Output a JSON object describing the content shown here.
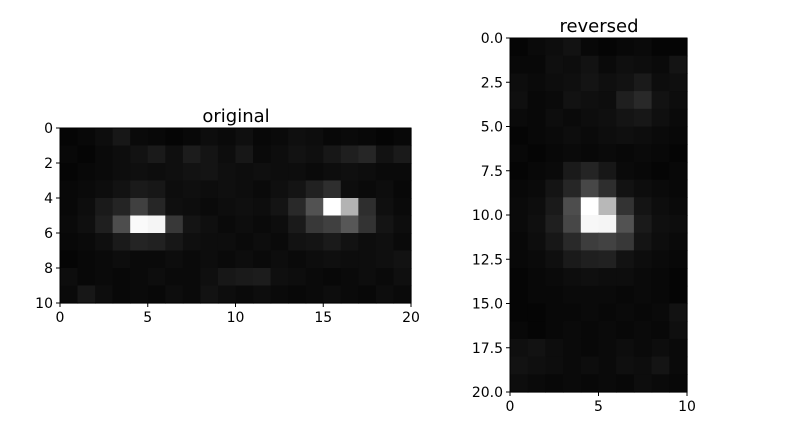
{
  "chart_data": [
    {
      "type": "heatmap",
      "title": "original",
      "colormap": "gray",
      "rows": 10,
      "cols": 20,
      "xlim": [
        0,
        20
      ],
      "ylim": [
        10,
        0
      ],
      "xticks": [
        "0",
        "5",
        "10",
        "15",
        "20"
      ],
      "yticks": [
        "0",
        "2",
        "4",
        "6",
        "8",
        "10"
      ],
      "grid": false,
      "values": [
        [
          0.02,
          0.03,
          0.05,
          0.09,
          0.04,
          0.03,
          0.02,
          0.03,
          0.05,
          0.04,
          0.06,
          0.03,
          0.04,
          0.06,
          0.05,
          0.03,
          0.04,
          0.03,
          0.02,
          0.03
        ],
        [
          0.03,
          0.02,
          0.04,
          0.05,
          0.07,
          0.1,
          0.06,
          0.11,
          0.08,
          0.05,
          0.09,
          0.04,
          0.05,
          0.07,
          0.06,
          0.09,
          0.12,
          0.15,
          0.07,
          0.1
        ],
        [
          0.02,
          0.03,
          0.04,
          0.05,
          0.06,
          0.05,
          0.06,
          0.07,
          0.08,
          0.06,
          0.05,
          0.06,
          0.05,
          0.05,
          0.04,
          0.05,
          0.06,
          0.05,
          0.04,
          0.04
        ],
        [
          0.03,
          0.04,
          0.05,
          0.07,
          0.1,
          0.09,
          0.05,
          0.06,
          0.05,
          0.06,
          0.05,
          0.04,
          0.06,
          0.08,
          0.13,
          0.18,
          0.05,
          0.04,
          0.05,
          0.03
        ],
        [
          0.03,
          0.05,
          0.1,
          0.14,
          0.25,
          0.15,
          0.06,
          0.05,
          0.04,
          0.05,
          0.06,
          0.05,
          0.08,
          0.16,
          0.32,
          1.0,
          0.7,
          0.18,
          0.06,
          0.04
        ],
        [
          0.04,
          0.06,
          0.12,
          0.3,
          0.98,
          0.96,
          0.22,
          0.08,
          0.06,
          0.04,
          0.05,
          0.04,
          0.05,
          0.1,
          0.22,
          0.25,
          0.34,
          0.2,
          0.08,
          0.05
        ],
        [
          0.03,
          0.04,
          0.06,
          0.1,
          0.14,
          0.13,
          0.09,
          0.06,
          0.05,
          0.05,
          0.04,
          0.05,
          0.04,
          0.07,
          0.08,
          0.1,
          0.07,
          0.05,
          0.06,
          0.04
        ],
        [
          0.02,
          0.03,
          0.04,
          0.05,
          0.04,
          0.04,
          0.05,
          0.04,
          0.05,
          0.04,
          0.05,
          0.04,
          0.05,
          0.04,
          0.05,
          0.06,
          0.05,
          0.05,
          0.06,
          0.07
        ],
        [
          0.05,
          0.03,
          0.04,
          0.03,
          0.04,
          0.05,
          0.04,
          0.04,
          0.06,
          0.09,
          0.1,
          0.11,
          0.06,
          0.05,
          0.04,
          0.03,
          0.04,
          0.05,
          0.04,
          0.06
        ],
        [
          0.04,
          0.09,
          0.05,
          0.03,
          0.04,
          0.03,
          0.05,
          0.04,
          0.07,
          0.05,
          0.04,
          0.05,
          0.04,
          0.03,
          0.04,
          0.05,
          0.04,
          0.03,
          0.05,
          0.04
        ]
      ]
    },
    {
      "type": "heatmap",
      "title": "reversed",
      "colormap": "gray",
      "rows": 20,
      "cols": 10,
      "xlim": [
        0,
        10
      ],
      "ylim": [
        20,
        0
      ],
      "xticks": [
        "0",
        "5",
        "10"
      ],
      "yticks": [
        "0.0",
        "2.5",
        "5.0",
        "7.5",
        "10.0",
        "12.5",
        "15.0",
        "17.5",
        "20.0"
      ],
      "grid": false,
      "values": [
        [
          0.02,
          0.04,
          0.05,
          0.07,
          0.03,
          0.02,
          0.03,
          0.04,
          0.02,
          0.02
        ],
        [
          0.03,
          0.03,
          0.06,
          0.05,
          0.07,
          0.04,
          0.06,
          0.05,
          0.04,
          0.08
        ],
        [
          0.05,
          0.04,
          0.05,
          0.06,
          0.08,
          0.06,
          0.07,
          0.1,
          0.05,
          0.06
        ],
        [
          0.06,
          0.03,
          0.04,
          0.07,
          0.06,
          0.05,
          0.12,
          0.16,
          0.07,
          0.05
        ],
        [
          0.04,
          0.03,
          0.05,
          0.04,
          0.05,
          0.06,
          0.08,
          0.09,
          0.06,
          0.04
        ],
        [
          0.02,
          0.03,
          0.04,
          0.05,
          0.04,
          0.05,
          0.06,
          0.05,
          0.04,
          0.03
        ],
        [
          0.03,
          0.02,
          0.03,
          0.04,
          0.03,
          0.04,
          0.03,
          0.04,
          0.03,
          0.02
        ],
        [
          0.02,
          0.03,
          0.04,
          0.1,
          0.14,
          0.09,
          0.04,
          0.03,
          0.02,
          0.03
        ],
        [
          0.03,
          0.04,
          0.08,
          0.15,
          0.28,
          0.18,
          0.07,
          0.05,
          0.04,
          0.03
        ],
        [
          0.04,
          0.05,
          0.1,
          0.3,
          1.0,
          0.72,
          0.2,
          0.08,
          0.05,
          0.04
        ],
        [
          0.04,
          0.06,
          0.12,
          0.28,
          0.97,
          0.96,
          0.32,
          0.1,
          0.06,
          0.05
        ],
        [
          0.03,
          0.05,
          0.09,
          0.16,
          0.24,
          0.26,
          0.22,
          0.08,
          0.05,
          0.04
        ],
        [
          0.03,
          0.04,
          0.06,
          0.1,
          0.12,
          0.13,
          0.07,
          0.05,
          0.04,
          0.03
        ],
        [
          0.02,
          0.03,
          0.04,
          0.05,
          0.06,
          0.05,
          0.05,
          0.04,
          0.03,
          0.02
        ],
        [
          0.02,
          0.03,
          0.03,
          0.04,
          0.04,
          0.04,
          0.03,
          0.04,
          0.03,
          0.02
        ],
        [
          0.02,
          0.02,
          0.03,
          0.03,
          0.04,
          0.03,
          0.04,
          0.03,
          0.04,
          0.07
        ],
        [
          0.03,
          0.02,
          0.03,
          0.04,
          0.03,
          0.04,
          0.03,
          0.04,
          0.03,
          0.06
        ],
        [
          0.06,
          0.07,
          0.05,
          0.04,
          0.03,
          0.04,
          0.05,
          0.04,
          0.05,
          0.04
        ],
        [
          0.07,
          0.06,
          0.05,
          0.04,
          0.05,
          0.04,
          0.06,
          0.05,
          0.08,
          0.04
        ],
        [
          0.05,
          0.04,
          0.03,
          0.04,
          0.03,
          0.04,
          0.03,
          0.05,
          0.04,
          0.03
        ]
      ]
    }
  ]
}
